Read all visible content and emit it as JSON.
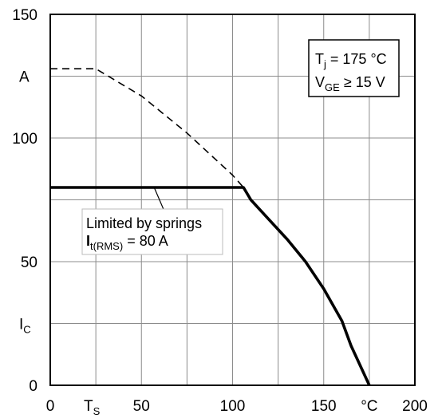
{
  "chart_data": {
    "type": "line",
    "xlim": [
      0,
      200
    ],
    "ylim": [
      0,
      150
    ],
    "grid": true,
    "x_ticks": [
      {
        "value": 0,
        "label": "0"
      },
      {
        "value": 50,
        "label": "50"
      },
      {
        "value": 100,
        "label": "100"
      },
      {
        "value": 150,
        "label": "150"
      },
      {
        "value": 200,
        "label": "200"
      }
    ],
    "x_extra_labels": [
      {
        "value": 25,
        "label": "T",
        "sub": "S"
      },
      {
        "value": 175,
        "label": "°C",
        "sub": ""
      }
    ],
    "y_ticks": [
      {
        "value": 0,
        "label": "0"
      },
      {
        "value": 50,
        "label": "50"
      },
      {
        "value": 100,
        "label": "100"
      },
      {
        "value": 150,
        "label": "150"
      }
    ],
    "y_extra_labels": [
      {
        "value": 125,
        "label": "A",
        "sub": ""
      },
      {
        "value": 25,
        "label": "I",
        "sub": "C"
      }
    ],
    "series": [
      {
        "style": "dashed",
        "x": [
          0,
          25,
          50,
          75,
          100,
          106
        ],
        "y": [
          128,
          128,
          117,
          102,
          85,
          80
        ]
      },
      {
        "style": "solid",
        "x": [
          0,
          106,
          110,
          120,
          130,
          140,
          150,
          160,
          165,
          175
        ],
        "y": [
          80,
          80,
          75,
          67,
          59,
          50,
          39,
          26,
          16,
          0
        ]
      }
    ],
    "conditions": {
      "line1": {
        "main": "T",
        "sub": "j",
        "rest": " = 175 °C"
      },
      "line2": {
        "main": "V",
        "sub": "GE",
        "rest": " ≥ 15 V"
      }
    },
    "annotation": {
      "line1": "Limited by springs",
      "line2_bold": "I",
      "line2_sub": "t(RMS)",
      "line2_rest": " = 80 A",
      "points_to": {
        "x": 57,
        "y": 80
      }
    }
  }
}
